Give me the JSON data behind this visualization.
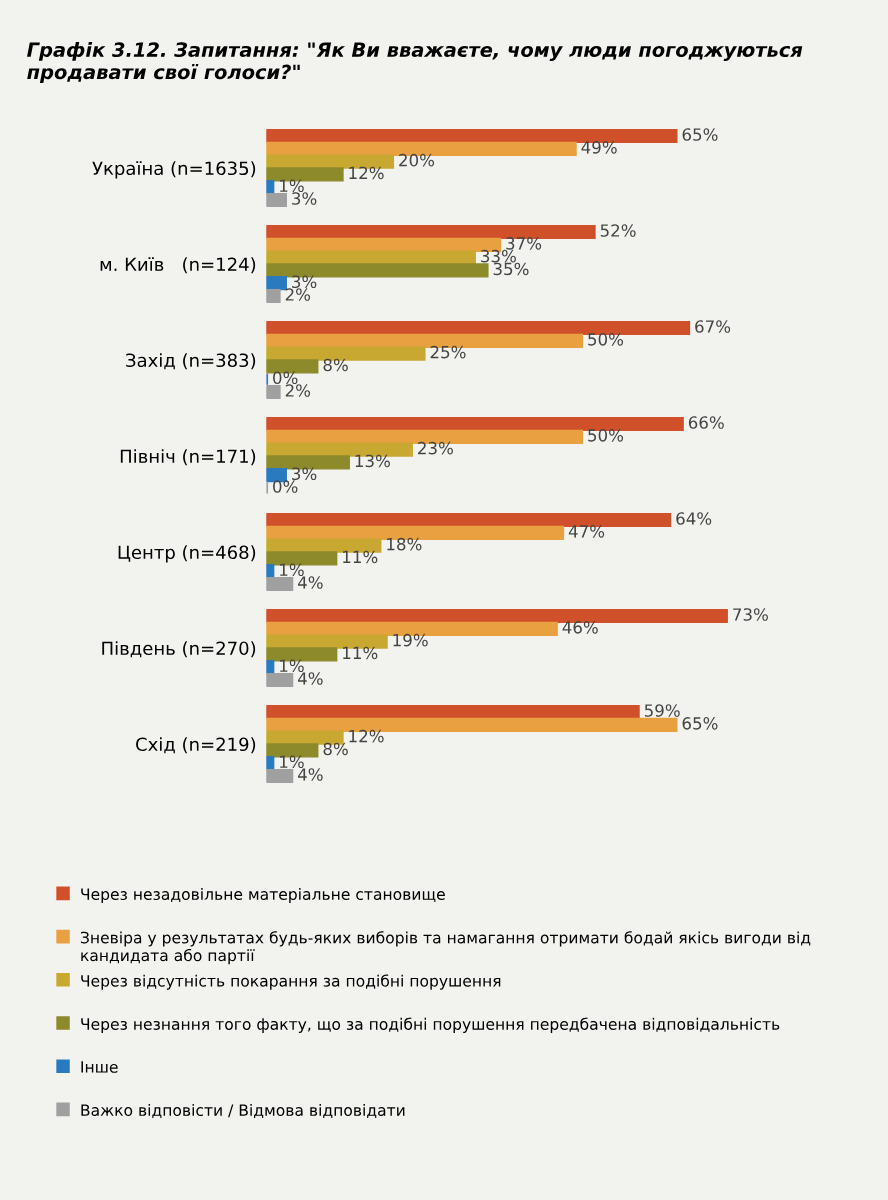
{
  "chart_data": {
    "type": "bar",
    "orientation": "horizontal",
    "title": "Графік 3.12. Запитання: \"Як Ви вважаєте, чому люди погоджуються продавати свої голоси?\"",
    "categories": [
      "Україна (n=1635)",
      "м. Київ   (n=124)",
      "Захід (n=383)",
      "Північ (n=171)",
      "Центр (n=468)",
      "Південь (n=270)",
      "Схід (n=219)"
    ],
    "series": [
      {
        "name": "Через незадовільне матеріальне становище",
        "color": "#d0502a",
        "values": [
          65,
          52,
          67,
          66,
          64,
          73,
          59
        ],
        "value_labels": [
          "65%",
          "52%",
          "67%",
          "66%",
          "64%",
          "73%",
          "59%"
        ]
      },
      {
        "name": "Зневіра у результатах будь-яких виборів та намагання отримати бодай якісь вигоди від кандидата або партії",
        "color": "#e8a040",
        "values": [
          49,
          37,
          50,
          50,
          47,
          46,
          65
        ],
        "value_labels": [
          "49%",
          "37%",
          "50%",
          "50%",
          "47%",
          "46%",
          "65%"
        ]
      },
      {
        "name": "Через відсутність покарання за подібні порушення",
        "color": "#c8a830",
        "values": [
          20,
          33,
          25,
          23,
          18,
          19,
          12
        ],
        "value_labels": [
          "20%",
          "33%",
          "25%",
          "23%",
          "18%",
          "19%",
          "12%"
        ]
      },
      {
        "name": "Через незнання того факту, що за подібні порушення передбачена відповідальність",
        "color": "#8c8a2a",
        "values": [
          12,
          35,
          8,
          13,
          11,
          11,
          8
        ],
        "value_labels": [
          "12%",
          "35%",
          "8%",
          "13%",
          "11%",
          "11%",
          "8%"
        ]
      },
      {
        "name": "Інше",
        "color": "#2a7ac0",
        "values": [
          1,
          3,
          0,
          3,
          1,
          1,
          1
        ],
        "value_labels": [
          "1%",
          "3%",
          "0%",
          "3%",
          "1%",
          "1%",
          "1%"
        ]
      },
      {
        "name": "Важко відповісти / Відмова відповідати",
        "color": "#a0a0a0",
        "values": [
          3,
          2,
          2,
          0,
          4,
          4,
          4
        ],
        "value_labels": [
          "3%",
          "2%",
          "2%",
          "0%",
          "4%",
          "4%",
          "4%"
        ]
      }
    ],
    "legend": "bottom",
    "tick_labels": "y",
    "grid": false
  }
}
